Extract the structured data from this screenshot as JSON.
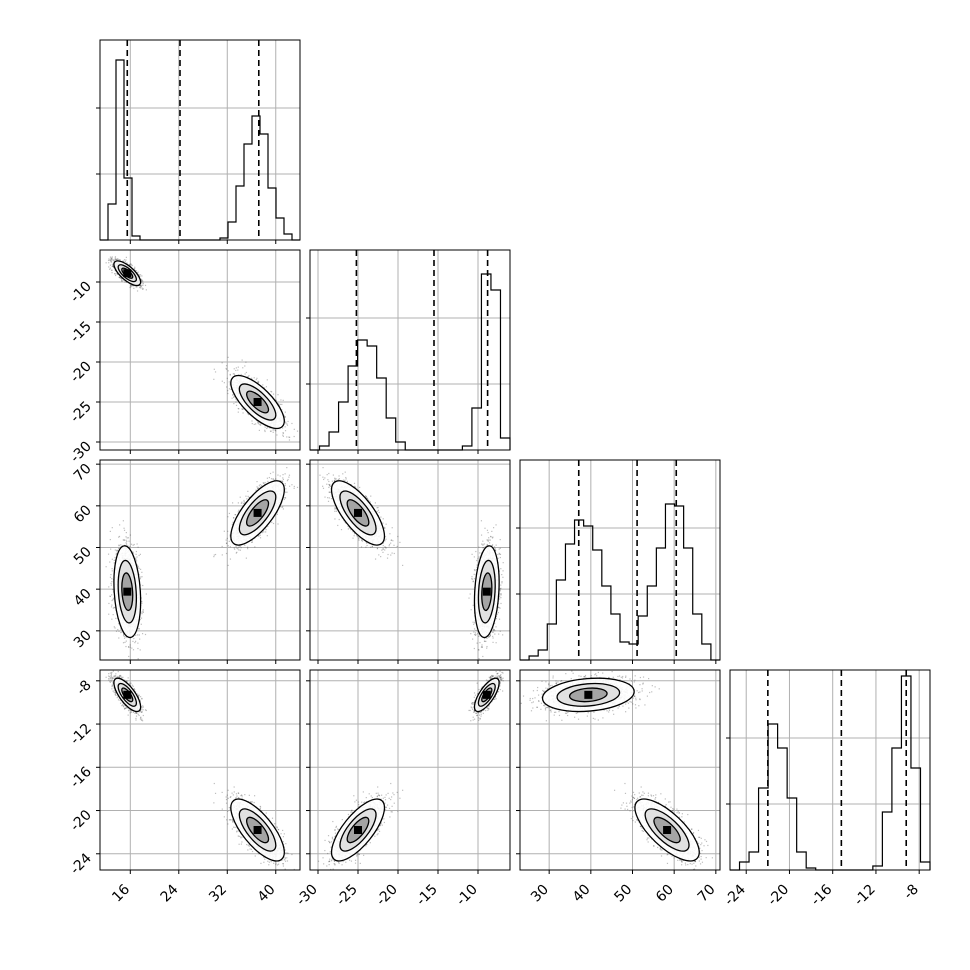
{
  "chart_data": {
    "type": "corner",
    "panel_order": "lower-triangle",
    "grid": true,
    "colors": {
      "ink": "#000000",
      "grid": "#b0b0b0",
      "points": "#444444"
    },
    "variables": [
      {
        "range": [
          11,
          44
        ],
        "ticks": [
          "16",
          "24",
          "32",
          "40"
        ],
        "tick_values": [
          16,
          24,
          32,
          40
        ],
        "quantiles": [
          15.5,
          24.2,
          37.2
        ],
        "hist_counts": [
          0,
          0.18,
          0.9,
          0.31,
          0.02,
          0,
          0,
          0,
          0,
          0,
          0,
          0,
          0,
          0,
          0,
          0.01,
          0.09,
          0.27,
          0.48,
          0.62,
          0.53,
          0.26,
          0.11,
          0.03,
          0
        ]
      },
      {
        "range": [
          -31,
          -6
        ],
        "ticks": [
          "-10",
          "-15",
          "-20",
          "-25",
          "-30"
        ],
        "tick_values": [
          -10,
          -15,
          -20,
          -25,
          -30
        ],
        "axis_ticks": [
          "-30",
          "-25",
          "-20",
          "-15",
          "-10"
        ],
        "quantiles": [
          -25.2,
          -15.5,
          -8.8
        ],
        "hist_counts": [
          0,
          0.02,
          0.09,
          0.24,
          0.42,
          0.55,
          0.52,
          0.36,
          0.16,
          0.04,
          0,
          0,
          0,
          0,
          0,
          0,
          0.02,
          0.21,
          0.88,
          0.8,
          0.06
        ]
      },
      {
        "range": [
          23,
          71
        ],
        "ticks": [
          "70",
          "60",
          "50",
          "40",
          "30"
        ],
        "tick_values": [
          70,
          60,
          50,
          40,
          30
        ],
        "axis_ticks": [
          "30",
          "40",
          "50",
          "60",
          "70"
        ],
        "quantiles": [
          37.1,
          51.1,
          60.5
        ],
        "hist_counts": [
          0,
          0.02,
          0.05,
          0.18,
          0.4,
          0.58,
          0.7,
          0.67,
          0.55,
          0.37,
          0.23,
          0.09,
          0.08,
          0.22,
          0.37,
          0.56,
          0.78,
          0.77,
          0.56,
          0.23,
          0.08,
          0
        ]
      },
      {
        "range": [
          -25.5,
          -7
        ],
        "ticks": [
          "-8",
          "-12",
          "-16",
          "-20",
          "-24"
        ],
        "tick_values": [
          -8,
          -12,
          -16,
          -20,
          -24
        ],
        "axis_ticks": [
          "-24",
          "-20",
          "-16",
          "-12",
          "-8"
        ],
        "quantiles": [
          -22,
          -15.2,
          -9.2
        ],
        "hist_counts": [
          0,
          0.04,
          0.09,
          0.41,
          0.73,
          0.61,
          0.36,
          0.09,
          0.01,
          0,
          0,
          0,
          0,
          0,
          0,
          0.02,
          0.29,
          0.61,
          0.97,
          0.51,
          0.04
        ]
      }
    ],
    "clusters": [
      {
        "mean": [
          15.5,
          -8.9,
          39.4,
          -9.3
        ],
        "std": [
          1.0,
          0.7,
          5.0,
          0.7
        ]
      },
      {
        "mean": [
          37.0,
          -25.0,
          58.3,
          -21.8
        ],
        "std": [
          2.0,
          1.5,
          3.5,
          1.3
        ]
      }
    ]
  }
}
